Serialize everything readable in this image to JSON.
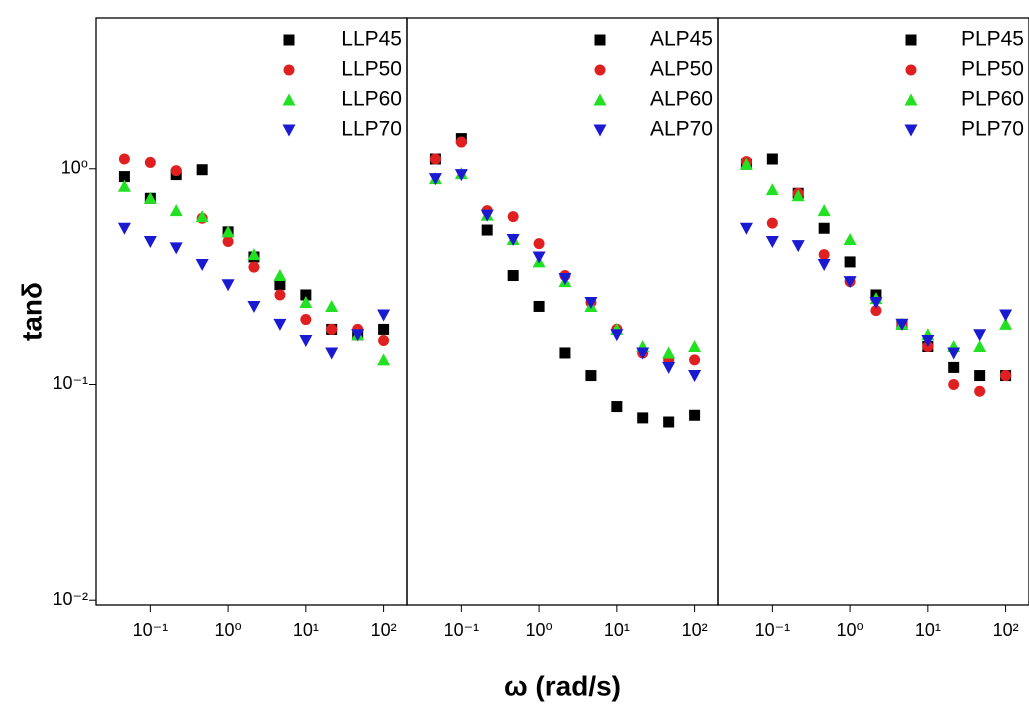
{
  "chart_data": [
    {
      "type": "scatter",
      "ylabel": "tanδ",
      "xscale": "log",
      "yscale": "log",
      "legend": "upper right",
      "xlim": [
        0.02,
        200
      ],
      "ylim": [
        0.0095,
        5
      ],
      "xticks": [
        {
          "value": 0.1,
          "label": "10⁻¹"
        },
        {
          "value": 1,
          "label": "10⁰"
        },
        {
          "value": 10,
          "label": "10¹"
        },
        {
          "value": 100,
          "label": "10²"
        }
      ],
      "yticks": [
        {
          "value": 0.01,
          "label": "10⁻²"
        },
        {
          "value": 0.1,
          "label": "10⁻¹"
        },
        {
          "value": 1,
          "label": "10⁰"
        }
      ],
      "x": [
        0.0464,
        0.1,
        0.215,
        0.464,
        1,
        2.15,
        4.64,
        10,
        21.5,
        46.4,
        100
      ],
      "series": [
        {
          "name": "LLP45",
          "color": "#000000",
          "marker": "square",
          "values": [
            0.92,
            0.73,
            0.94,
            0.99,
            0.51,
            0.39,
            0.29,
            0.26,
            0.18,
            0.17,
            0.18
          ]
        },
        {
          "name": "LLP50",
          "color": "#e02020",
          "marker": "circle",
          "values": [
            1.11,
            1.07,
            0.98,
            0.59,
            0.46,
            0.35,
            0.26,
            0.2,
            0.18,
            0.18,
            0.16
          ]
        },
        {
          "name": "LLP60",
          "color": "#22e022",
          "marker": "triangle-up",
          "values": [
            0.83,
            0.73,
            0.64,
            0.6,
            0.51,
            0.4,
            0.32,
            0.24,
            0.23,
            0.17,
            0.13
          ]
        },
        {
          "name": "LLP70",
          "color": "#1a1ad0",
          "marker": "triangle-down",
          "values": [
            0.53,
            0.46,
            0.43,
            0.36,
            0.29,
            0.23,
            0.19,
            0.16,
            0.14,
            0.17,
            0.21
          ]
        }
      ]
    },
    {
      "type": "scatter",
      "xlabel": "ω (rad/s)",
      "xscale": "log",
      "yscale": "log",
      "legend": "upper right",
      "xlim": [
        0.02,
        200
      ],
      "ylim": [
        0.0095,
        5
      ],
      "xticks": [
        {
          "value": 0.1,
          "label": "10⁻¹"
        },
        {
          "value": 1,
          "label": "10⁰"
        },
        {
          "value": 10,
          "label": "10¹"
        },
        {
          "value": 100,
          "label": "10²"
        }
      ],
      "x": [
        0.0464,
        0.1,
        0.215,
        0.464,
        1,
        2.15,
        4.64,
        10,
        21.5,
        46.4,
        100
      ],
      "series": [
        {
          "name": "ALP45",
          "color": "#000000",
          "marker": "square",
          "values": [
            1.11,
            1.38,
            0.52,
            0.32,
            0.23,
            0.14,
            0.11,
            0.079,
            0.07,
            0.067,
            0.072
          ]
        },
        {
          "name": "ALP50",
          "color": "#e02020",
          "marker": "circle",
          "values": [
            1.11,
            1.33,
            0.64,
            0.6,
            0.45,
            0.32,
            0.24,
            0.18,
            0.14,
            0.13,
            0.13
          ]
        },
        {
          "name": "ALP60",
          "color": "#22e022",
          "marker": "triangle-up",
          "values": [
            0.9,
            0.95,
            0.61,
            0.47,
            0.37,
            0.3,
            0.23,
            0.18,
            0.15,
            0.14,
            0.15
          ]
        },
        {
          "name": "ALP70",
          "color": "#1a1ad0",
          "marker": "triangle-down",
          "values": [
            0.9,
            0.94,
            0.61,
            0.47,
            0.39,
            0.31,
            0.24,
            0.17,
            0.14,
            0.12,
            0.11
          ]
        }
      ]
    },
    {
      "type": "scatter",
      "xscale": "log",
      "yscale": "log",
      "legend": "upper right",
      "xlim": [
        0.02,
        200
      ],
      "ylim": [
        0.0095,
        5
      ],
      "xticks": [
        {
          "value": 0.1,
          "label": "10⁻¹"
        },
        {
          "value": 1,
          "label": "10⁰"
        },
        {
          "value": 10,
          "label": "10¹"
        },
        {
          "value": 100,
          "label": "10²"
        }
      ],
      "x": [
        0.0464,
        0.1,
        0.215,
        0.464,
        1,
        2.15,
        4.64,
        10,
        21.5,
        46.4,
        100
      ],
      "series": [
        {
          "name": "PLP45",
          "color": "#000000",
          "marker": "square",
          "values": [
            1.05,
            1.11,
            0.77,
            0.53,
            0.37,
            0.26,
            0.19,
            0.15,
            0.12,
            0.11,
            0.11
          ]
        },
        {
          "name": "PLP50",
          "color": "#e02020",
          "marker": "circle",
          "values": [
            1.08,
            0.56,
            0.77,
            0.4,
            0.3,
            0.22,
            0.19,
            0.15,
            0.1,
            0.093,
            0.11
          ]
        },
        {
          "name": "PLP60",
          "color": "#22e022",
          "marker": "triangle-up",
          "values": [
            1.05,
            0.8,
            0.75,
            0.64,
            0.47,
            0.25,
            0.19,
            0.17,
            0.15,
            0.15,
            0.19
          ]
        },
        {
          "name": "PLP70",
          "color": "#1a1ad0",
          "marker": "triangle-down",
          "values": [
            0.53,
            0.46,
            0.44,
            0.36,
            0.3,
            0.24,
            0.19,
            0.16,
            0.14,
            0.17,
            0.21
          ]
        }
      ]
    }
  ]
}
